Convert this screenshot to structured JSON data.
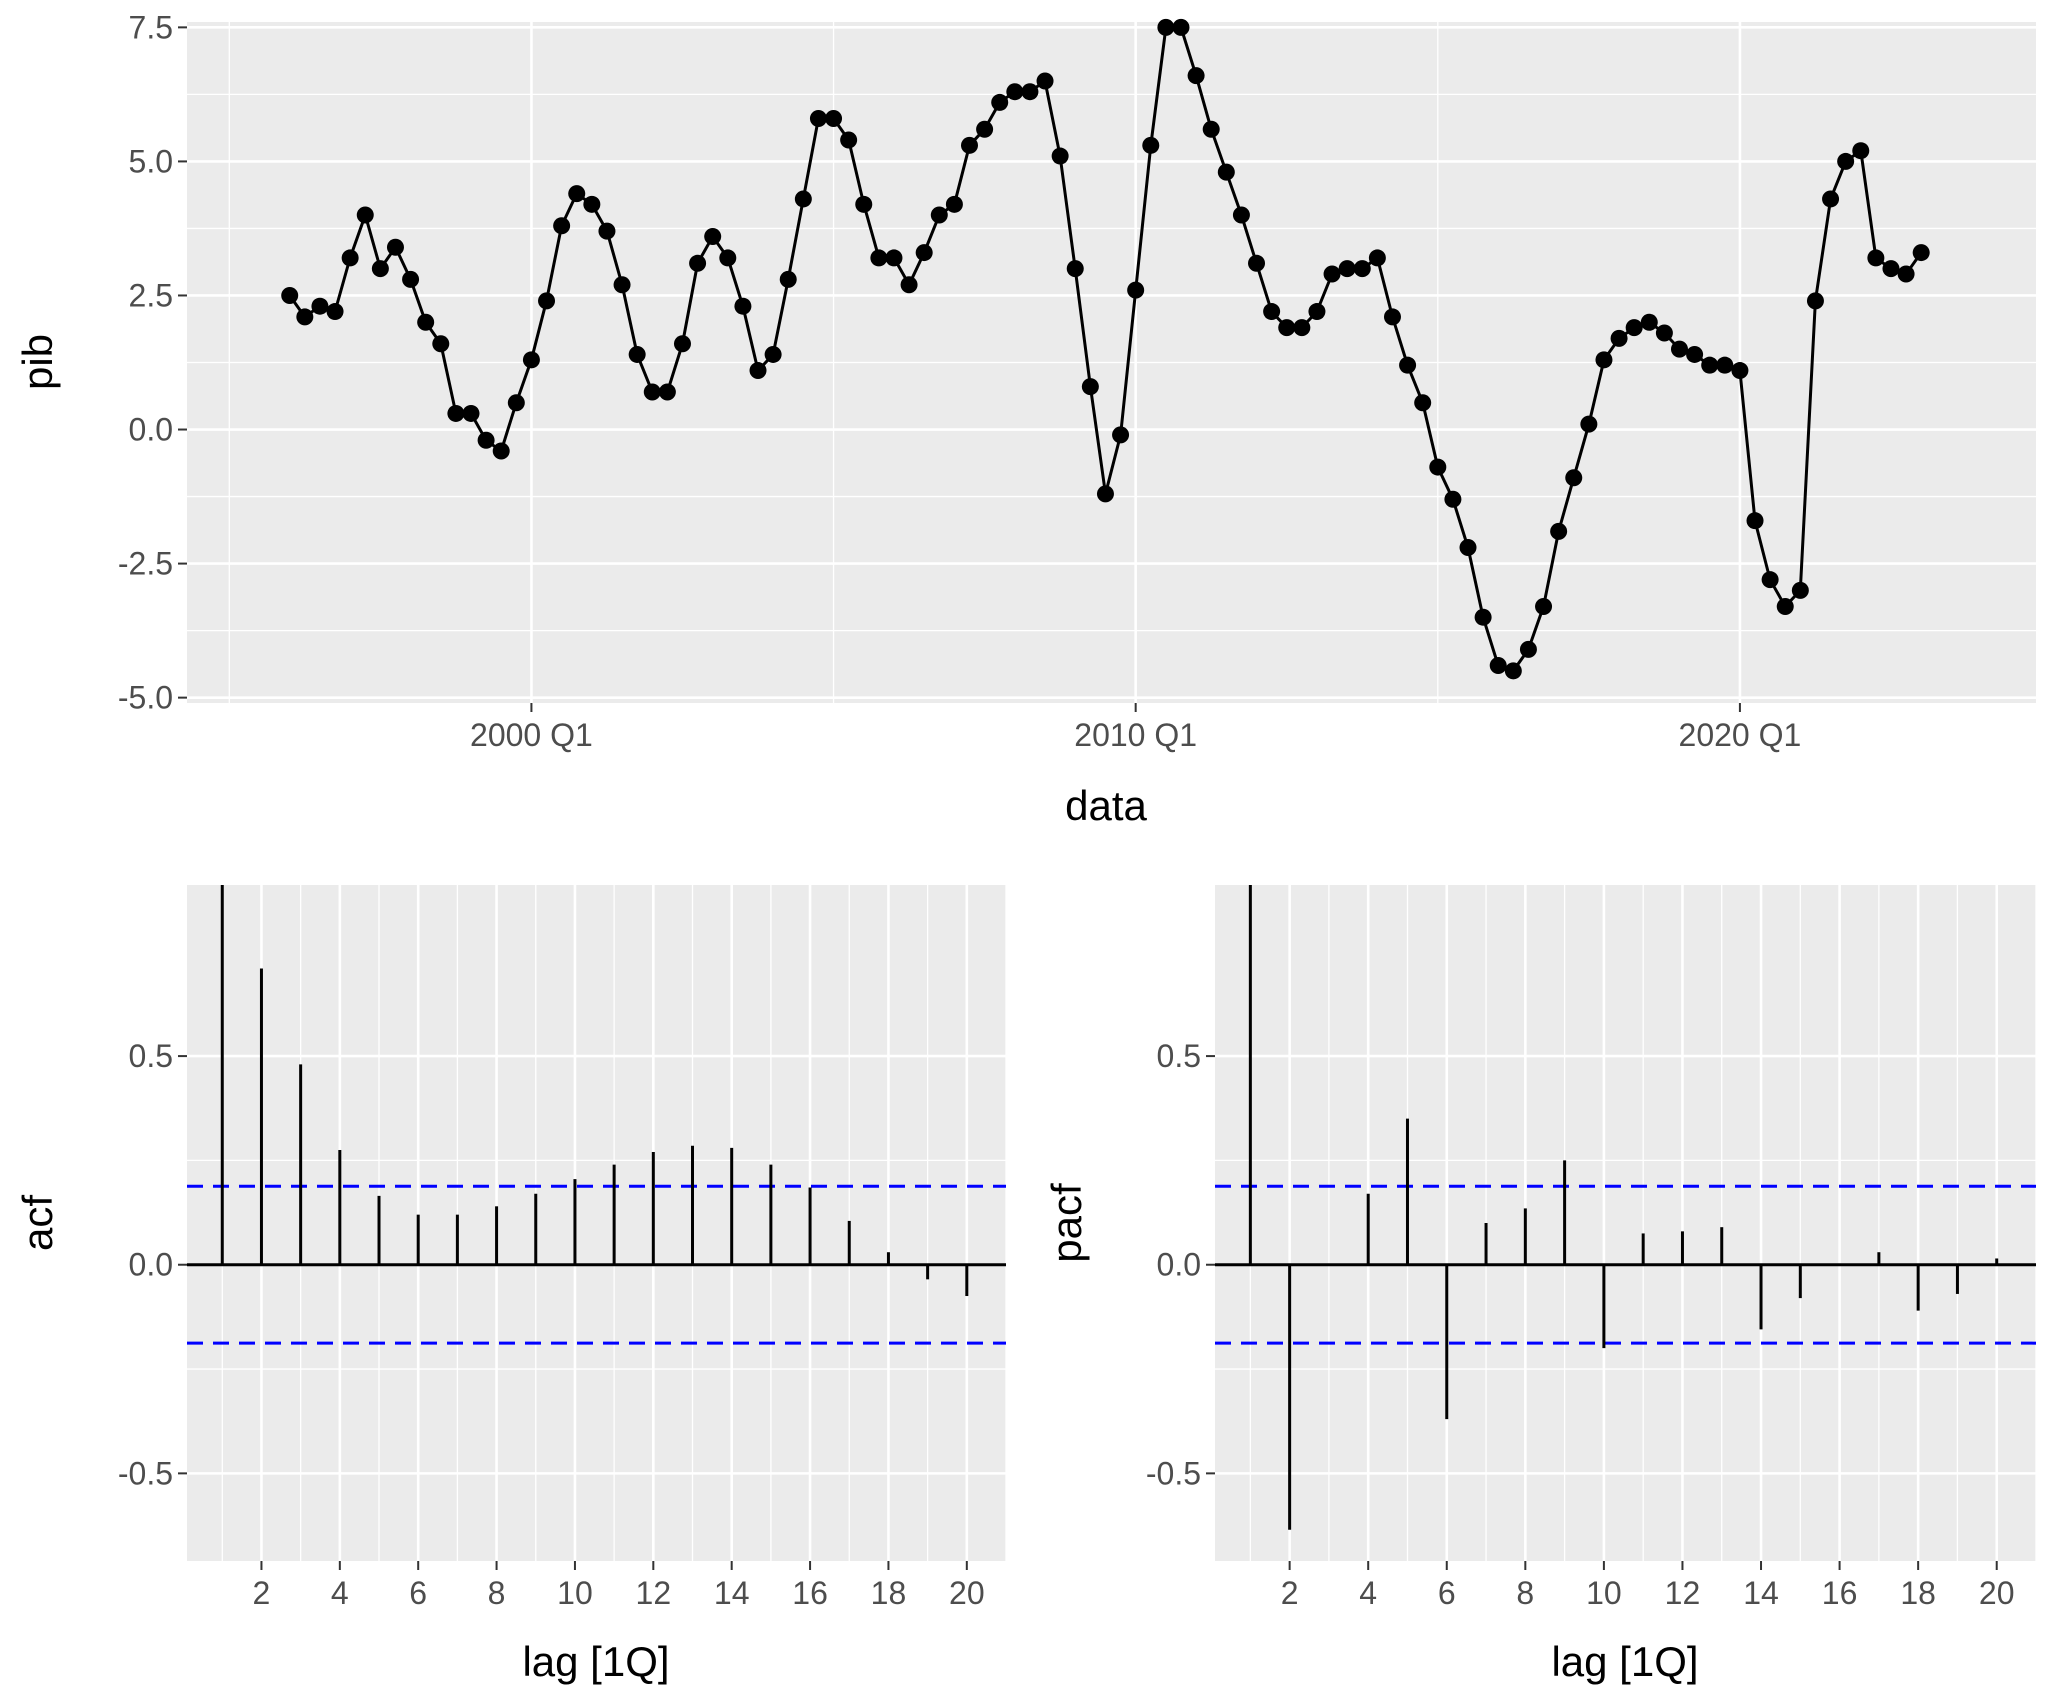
{
  "colors": {
    "panel": "#ebebeb",
    "grid": "#ffffff",
    "series": "#000000",
    "ci": "#0000ff",
    "tick_text": "#4d4d4d"
  },
  "chart_data": [
    {
      "type": "line",
      "id": "pib",
      "xlabel": "data",
      "ylabel": "pib",
      "start_year": 1996,
      "start_quarter": 1,
      "xlim": [
        1994.3,
        2024.9
      ],
      "ylim": [
        -5.1,
        7.6
      ],
      "x_ticks": [
        {
          "value": 2000,
          "label": "2000 Q1"
        },
        {
          "value": 2010,
          "label": "2010 Q1"
        },
        {
          "value": 2020,
          "label": "2020 Q1"
        }
      ],
      "y_ticks": [
        {
          "value": 7.5,
          "label": "7.5"
        },
        {
          "value": 5.0,
          "label": "5.0"
        },
        {
          "value": 2.5,
          "label": "2.5"
        },
        {
          "value": 0.0,
          "label": "0.0"
        },
        {
          "value": -2.5,
          "label": "-2.5"
        },
        {
          "value": -5.0,
          "label": "-5.0"
        }
      ],
      "values": [
        2.5,
        2.1,
        2.3,
        2.2,
        3.2,
        4.0,
        3.0,
        3.4,
        2.8,
        2.0,
        1.6,
        0.3,
        0.3,
        -0.2,
        -0.4,
        0.5,
        1.3,
        2.4,
        3.8,
        4.4,
        4.2,
        3.7,
        2.7,
        1.4,
        0.7,
        0.7,
        1.6,
        3.1,
        3.6,
        3.2,
        2.3,
        1.1,
        1.4,
        2.8,
        4.3,
        5.8,
        5.8,
        5.4,
        4.2,
        3.2,
        3.2,
        2.7,
        3.3,
        4.0,
        4.2,
        5.3,
        5.6,
        6.1,
        6.3,
        6.3,
        6.5,
        5.1,
        3.0,
        0.8,
        -1.2,
        -0.1,
        2.6,
        5.3,
        7.5,
        7.5,
        6.6,
        5.6,
        4.8,
        4.0,
        3.1,
        2.2,
        1.9,
        1.9,
        2.2,
        2.9,
        3.0,
        3.0,
        3.2,
        2.1,
        1.2,
        0.5,
        -0.7,
        -1.3,
        -2.2,
        -3.5,
        -4.4,
        -4.5,
        -4.1,
        -3.3,
        -1.9,
        -0.9,
        0.1,
        1.3,
        1.7,
        1.9,
        2.0,
        1.8,
        1.5,
        1.4,
        1.2,
        1.2,
        1.1,
        -1.7,
        -2.8,
        -3.3,
        -3.0,
        2.4,
        4.3,
        5.0,
        5.2,
        3.2,
        3.0,
        2.9,
        3.3
      ]
    },
    {
      "type": "bar",
      "id": "acf",
      "xlabel": "lag [1Q]",
      "ylabel": "acf",
      "xlim": [
        0.1,
        21.0
      ],
      "ylim": [
        -0.71,
        0.91
      ],
      "x_ticks": [
        {
          "value": 2,
          "label": "2"
        },
        {
          "value": 4,
          "label": "4"
        },
        {
          "value": 6,
          "label": "6"
        },
        {
          "value": 8,
          "label": "8"
        },
        {
          "value": 10,
          "label": "10"
        },
        {
          "value": 12,
          "label": "12"
        },
        {
          "value": 14,
          "label": "14"
        },
        {
          "value": 16,
          "label": "16"
        },
        {
          "value": 18,
          "label": "18"
        },
        {
          "value": 20,
          "label": "20"
        }
      ],
      "y_ticks": [
        {
          "value": 0.5,
          "label": "0.5"
        },
        {
          "value": 0.0,
          "label": "0.0"
        },
        {
          "value": -0.5,
          "label": "-0.5"
        }
      ],
      "ci": 0.188,
      "lags": [
        1,
        2,
        3,
        4,
        5,
        6,
        7,
        8,
        9,
        10,
        11,
        12,
        13,
        14,
        15,
        16,
        17,
        18,
        19,
        20
      ],
      "values": [
        0.91,
        0.71,
        0.48,
        0.275,
        0.165,
        0.12,
        0.12,
        0.14,
        0.17,
        0.205,
        0.24,
        0.27,
        0.285,
        0.28,
        0.24,
        0.185,
        0.105,
        0.03,
        -0.035,
        -0.075
      ]
    },
    {
      "type": "bar",
      "id": "pacf",
      "xlabel": "lag [1Q]",
      "ylabel": "pacf",
      "xlim": [
        0.1,
        21.0
      ],
      "ylim": [
        -0.71,
        0.91
      ],
      "x_ticks": [
        {
          "value": 2,
          "label": "2"
        },
        {
          "value": 4,
          "label": "4"
        },
        {
          "value": 6,
          "label": "6"
        },
        {
          "value": 8,
          "label": "8"
        },
        {
          "value": 10,
          "label": "10"
        },
        {
          "value": 12,
          "label": "12"
        },
        {
          "value": 14,
          "label": "14"
        },
        {
          "value": 16,
          "label": "16"
        },
        {
          "value": 18,
          "label": "18"
        },
        {
          "value": 20,
          "label": "20"
        }
      ],
      "y_ticks": [
        {
          "value": 0.5,
          "label": "0.5"
        },
        {
          "value": 0.0,
          "label": "0.0"
        },
        {
          "value": -0.5,
          "label": "-0.5"
        }
      ],
      "ci": 0.188,
      "lags": [
        1,
        2,
        3,
        4,
        5,
        6,
        7,
        8,
        9,
        10,
        11,
        12,
        13,
        14,
        15,
        16,
        17,
        18,
        19,
        20
      ],
      "values": [
        0.91,
        -0.635,
        0.0,
        0.17,
        0.35,
        -0.37,
        0.1,
        0.135,
        0.25,
        -0.2,
        0.075,
        0.08,
        0.09,
        -0.155,
        -0.08,
        0.0,
        0.03,
        -0.11,
        -0.07,
        0.015
      ]
    }
  ]
}
